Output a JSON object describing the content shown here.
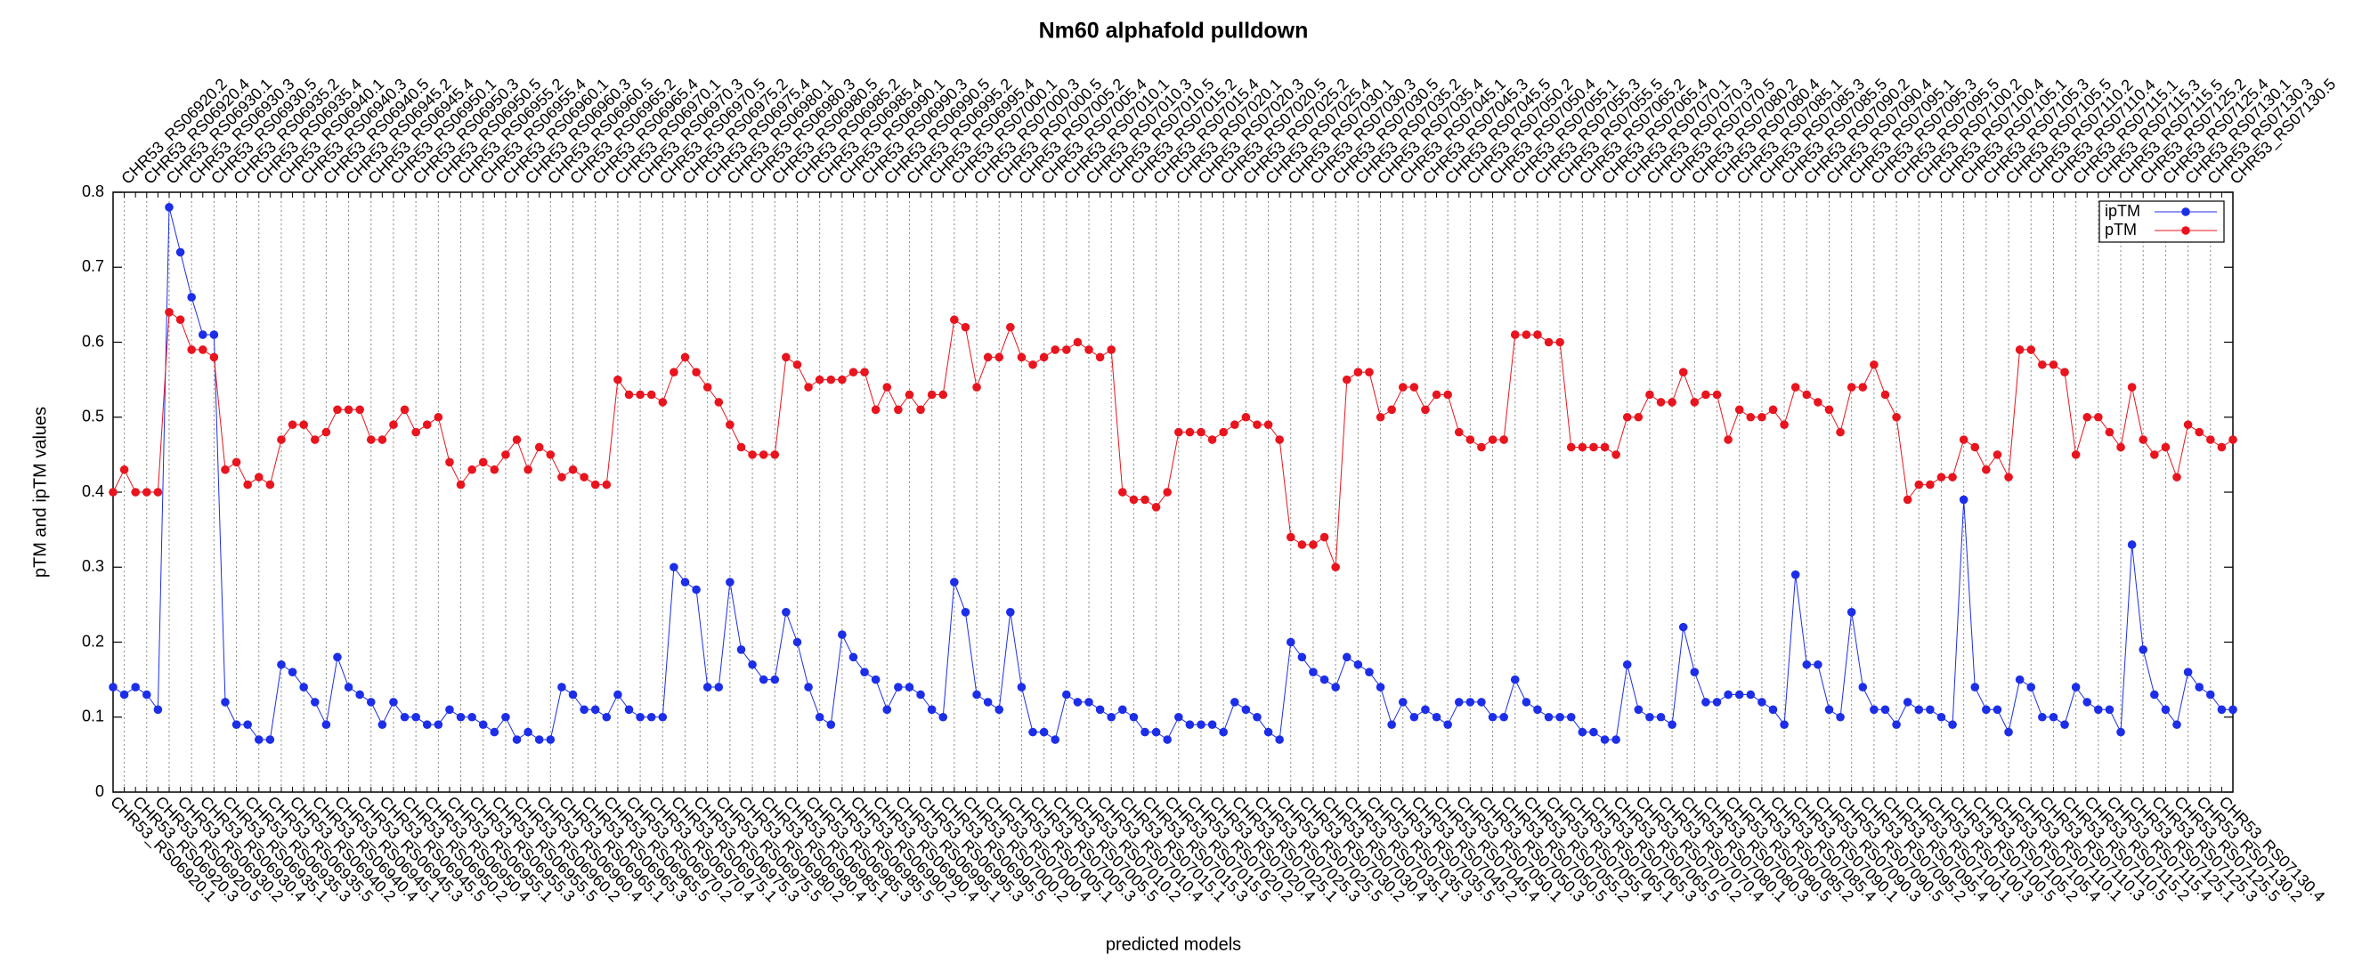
{
  "chart_data": {
    "type": "line",
    "title": "Nm60 alphafold pulldown",
    "xlabel": "predicted models",
    "ylabel": "pTM and ipTM values",
    "ylim": [
      0,
      0.8
    ],
    "yticks": [
      0,
      0.1,
      0.2,
      0.3,
      0.4,
      0.5,
      0.6,
      0.7,
      0.8
    ],
    "xgrid": true,
    "legend": "upper right",
    "categories": [
      "CHR53_RS06920.1",
      "CHR53_RS06920.2",
      "CHR53_RS06920.3",
      "CHR53_RS06920.4",
      "CHR53_RS06920.5",
      "CHR53_RS06930.1",
      "CHR53_RS06930.2",
      "CHR53_RS06930.3",
      "CHR53_RS06930.4",
      "CHR53_RS06930.5",
      "CHR53_RS06935.1",
      "CHR53_RS06935.2",
      "CHR53_RS06935.3",
      "CHR53_RS06935.4",
      "CHR53_RS06935.5",
      "CHR53_RS06940.1",
      "CHR53_RS06940.2",
      "CHR53_RS06940.3",
      "CHR53_RS06940.4",
      "CHR53_RS06940.5",
      "CHR53_RS06945.1",
      "CHR53_RS06945.2",
      "CHR53_RS06945.3",
      "CHR53_RS06945.4",
      "CHR53_RS06945.5",
      "CHR53_RS06950.1",
      "CHR53_RS06950.2",
      "CHR53_RS06950.3",
      "CHR53_RS06950.4",
      "CHR53_RS06950.5",
      "CHR53_RS06955.1",
      "CHR53_RS06955.2",
      "CHR53_RS06955.3",
      "CHR53_RS06955.4",
      "CHR53_RS06955.5",
      "CHR53_RS06960.1",
      "CHR53_RS06960.2",
      "CHR53_RS06960.3",
      "CHR53_RS06960.4",
      "CHR53_RS06960.5",
      "CHR53_RS06965.1",
      "CHR53_RS06965.2",
      "CHR53_RS06965.3",
      "CHR53_RS06965.4",
      "CHR53_RS06965.5",
      "CHR53_RS06970.1",
      "CHR53_RS06970.2",
      "CHR53_RS06970.3",
      "CHR53_RS06970.4",
      "CHR53_RS06970.5",
      "CHR53_RS06975.1",
      "CHR53_RS06975.2",
      "CHR53_RS06975.3",
      "CHR53_RS06975.4",
      "CHR53_RS06975.5",
      "CHR53_RS06980.1",
      "CHR53_RS06980.2",
      "CHR53_RS06980.3",
      "CHR53_RS06980.4",
      "CHR53_RS06980.5",
      "CHR53_RS06985.1",
      "CHR53_RS06985.2",
      "CHR53_RS06985.3",
      "CHR53_RS06985.4",
      "CHR53_RS06985.5",
      "CHR53_RS06990.1",
      "CHR53_RS06990.2",
      "CHR53_RS06990.3",
      "CHR53_RS06990.4",
      "CHR53_RS06990.5",
      "CHR53_RS06995.1",
      "CHR53_RS06995.2",
      "CHR53_RS06995.3",
      "CHR53_RS06995.4",
      "CHR53_RS06995.5",
      "CHR53_RS07000.1",
      "CHR53_RS07000.2",
      "CHR53_RS07000.3",
      "CHR53_RS07000.4",
      "CHR53_RS07000.5",
      "CHR53_RS07005.1",
      "CHR53_RS07005.2",
      "CHR53_RS07005.3",
      "CHR53_RS07005.4",
      "CHR53_RS07005.5",
      "CHR53_RS07010.1",
      "CHR53_RS07010.2",
      "CHR53_RS07010.3",
      "CHR53_RS07010.4",
      "CHR53_RS07010.5",
      "CHR53_RS07015.1",
      "CHR53_RS07015.2",
      "CHR53_RS07015.3",
      "CHR53_RS07015.4",
      "CHR53_RS07015.5",
      "CHR53_RS07020.1",
      "CHR53_RS07020.2",
      "CHR53_RS07020.3",
      "CHR53_RS07020.4",
      "CHR53_RS07020.5",
      "CHR53_RS07025.1",
      "CHR53_RS07025.2",
      "CHR53_RS07025.3",
      "CHR53_RS07025.4",
      "CHR53_RS07025.5",
      "CHR53_RS07030.1",
      "CHR53_RS07030.2",
      "CHR53_RS07030.3",
      "CHR53_RS07030.4",
      "CHR53_RS07030.5",
      "CHR53_RS07035.1",
      "CHR53_RS07035.2",
      "CHR53_RS07035.3",
      "CHR53_RS07035.4",
      "CHR53_RS07035.5",
      "CHR53_RS07045.1",
      "CHR53_RS07045.2",
      "CHR53_RS07045.3",
      "CHR53_RS07045.4",
      "CHR53_RS07045.5",
      "CHR53_RS07050.1",
      "CHR53_RS07050.2",
      "CHR53_RS07050.3",
      "CHR53_RS07050.4",
      "CHR53_RS07050.5",
      "CHR53_RS07055.1",
      "CHR53_RS07055.2",
      "CHR53_RS07055.3",
      "CHR53_RS07055.4",
      "CHR53_RS07055.5",
      "CHR53_RS07065.1",
      "CHR53_RS07065.2",
      "CHR53_RS07065.3",
      "CHR53_RS07065.4",
      "CHR53_RS07065.5",
      "CHR53_RS07070.1",
      "CHR53_RS07070.2",
      "CHR53_RS07070.3",
      "CHR53_RS07070.4",
      "CHR53_RS07070.5",
      "CHR53_RS07080.1",
      "CHR53_RS07080.2",
      "CHR53_RS07080.3",
      "CHR53_RS07080.4",
      "CHR53_RS07080.5",
      "CHR53_RS07085.1",
      "CHR53_RS07085.2",
      "CHR53_RS07085.3",
      "CHR53_RS07085.4",
      "CHR53_RS07085.5",
      "CHR53_RS07090.1",
      "CHR53_RS07090.2",
      "CHR53_RS07090.3",
      "CHR53_RS07090.4",
      "CHR53_RS07090.5",
      "CHR53_RS07095.1",
      "CHR53_RS07095.2",
      "CHR53_RS07095.3",
      "CHR53_RS07095.4",
      "CHR53_RS07095.5",
      "CHR53_RS07100.1",
      "CHR53_RS07100.2",
      "CHR53_RS07100.3",
      "CHR53_RS07100.4",
      "CHR53_RS07100.5",
      "CHR53_RS07105.1",
      "CHR53_RS07105.2",
      "CHR53_RS07105.3",
      "CHR53_RS07105.4",
      "CHR53_RS07105.5",
      "CHR53_RS07110.1",
      "CHR53_RS07110.2",
      "CHR53_RS07110.3",
      "CHR53_RS07110.4",
      "CHR53_RS07110.5",
      "CHR53_RS07115.1",
      "CHR53_RS07115.2",
      "CHR53_RS07115.3",
      "CHR53_RS07115.4",
      "CHR53_RS07115.5",
      "CHR53_RS07125.1",
      "CHR53_RS07125.2",
      "CHR53_RS07125.3",
      "CHR53_RS07125.4",
      "CHR53_RS07125.5",
      "CHR53_RS07130.1",
      "CHR53_RS07130.2",
      "CHR53_RS07130.3",
      "CHR53_RS07130.4",
      "CHR53_RS07130.5"
    ],
    "series": [
      {
        "name": "ipTM",
        "color": "#1c2ee8",
        "values": [
          0.14,
          0.13,
          0.14,
          0.13,
          0.11,
          0.78,
          0.72,
          0.66,
          0.61,
          0.61,
          0.12,
          0.09,
          0.09,
          0.07,
          0.07,
          0.17,
          0.16,
          0.14,
          0.12,
          0.09,
          0.18,
          0.14,
          0.13,
          0.12,
          0.09,
          0.12,
          0.1,
          0.1,
          0.09,
          0.09,
          0.11,
          0.1,
          0.1,
          0.09,
          0.08,
          0.1,
          0.07,
          0.08,
          0.07,
          0.07,
          0.14,
          0.13,
          0.11,
          0.11,
          0.1,
          0.13,
          0.11,
          0.1,
          0.1,
          0.1,
          0.3,
          0.28,
          0.27,
          0.14,
          0.14,
          0.28,
          0.19,
          0.17,
          0.15,
          0.15,
          0.24,
          0.2,
          0.14,
          0.1,
          0.09,
          0.21,
          0.18,
          0.16,
          0.15,
          0.11,
          0.14,
          0.14,
          0.13,
          0.11,
          0.1,
          0.28,
          0.24,
          0.13,
          0.12,
          0.11,
          0.24,
          0.14,
          0.08,
          0.08,
          0.07,
          0.13,
          0.12,
          0.12,
          0.11,
          0.1,
          0.11,
          0.1,
          0.08,
          0.08,
          0.07,
          0.1,
          0.09,
          0.09,
          0.09,
          0.08,
          0.12,
          0.11,
          0.1,
          0.08,
          0.07,
          0.2,
          0.18,
          0.16,
          0.15,
          0.14,
          0.18,
          0.17,
          0.16,
          0.14,
          0.09,
          0.12,
          0.1,
          0.11,
          0.1,
          0.09,
          0.12,
          0.12,
          0.12,
          0.1,
          0.1,
          0.15,
          0.12,
          0.11,
          0.1,
          0.1,
          0.1,
          0.08,
          0.08,
          0.07,
          0.07,
          0.17,
          0.11,
          0.1,
          0.1,
          0.09,
          0.22,
          0.16,
          0.12,
          0.12,
          0.13,
          0.13,
          0.13,
          0.12,
          0.11,
          0.09,
          0.29,
          0.17,
          0.17,
          0.11,
          0.1,
          0.24,
          0.14,
          0.11,
          0.11,
          0.09,
          0.12,
          0.11,
          0.11,
          0.1,
          0.09,
          0.39,
          0.14,
          0.11,
          0.11,
          0.08,
          0.15,
          0.14,
          0.1,
          0.1,
          0.09,
          0.14,
          0.12,
          0.11,
          0.11,
          0.08,
          0.33,
          0.19,
          0.13,
          0.11,
          0.09,
          0.16,
          0.14,
          0.13,
          0.11,
          0.11
        ]
      },
      {
        "name": "pTM",
        "color": "#e8141e",
        "values": [
          0.4,
          0.43,
          0.4,
          0.4,
          0.4,
          0.64,
          0.63,
          0.59,
          0.59,
          0.58,
          0.43,
          0.44,
          0.41,
          0.42,
          0.41,
          0.47,
          0.49,
          0.49,
          0.47,
          0.48,
          0.51,
          0.51,
          0.51,
          0.47,
          0.47,
          0.49,
          0.51,
          0.48,
          0.49,
          0.5,
          0.44,
          0.41,
          0.43,
          0.44,
          0.43,
          0.45,
          0.47,
          0.43,
          0.46,
          0.45,
          0.42,
          0.43,
          0.42,
          0.41,
          0.41,
          0.55,
          0.53,
          0.53,
          0.53,
          0.52,
          0.56,
          0.58,
          0.56,
          0.54,
          0.52,
          0.49,
          0.46,
          0.45,
          0.45,
          0.45,
          0.58,
          0.57,
          0.54,
          0.55,
          0.55,
          0.55,
          0.56,
          0.56,
          0.51,
          0.54,
          0.51,
          0.53,
          0.51,
          0.53,
          0.53,
          0.63,
          0.62,
          0.54,
          0.58,
          0.58,
          0.62,
          0.58,
          0.57,
          0.58,
          0.59,
          0.59,
          0.6,
          0.59,
          0.58,
          0.59,
          0.4,
          0.39,
          0.39,
          0.38,
          0.4,
          0.48,
          0.48,
          0.48,
          0.47,
          0.48,
          0.49,
          0.5,
          0.49,
          0.49,
          0.47,
          0.34,
          0.33,
          0.33,
          0.34,
          0.3,
          0.55,
          0.56,
          0.56,
          0.5,
          0.51,
          0.54,
          0.54,
          0.51,
          0.53,
          0.53,
          0.48,
          0.47,
          0.46,
          0.47,
          0.47,
          0.61,
          0.61,
          0.61,
          0.6,
          0.6,
          0.46,
          0.46,
          0.46,
          0.46,
          0.45,
          0.5,
          0.5,
          0.53,
          0.52,
          0.52,
          0.56,
          0.52,
          0.53,
          0.53,
          0.47,
          0.51,
          0.5,
          0.5,
          0.51,
          0.49,
          0.54,
          0.53,
          0.52,
          0.51,
          0.48,
          0.54,
          0.54,
          0.57,
          0.53,
          0.5,
          0.39,
          0.41,
          0.41,
          0.42,
          0.42,
          0.47,
          0.46,
          0.43,
          0.45,
          0.42,
          0.59,
          0.59,
          0.57,
          0.57,
          0.56,
          0.45,
          0.5,
          0.5,
          0.48,
          0.46,
          0.54,
          0.47,
          0.45,
          0.46,
          0.42,
          0.49,
          0.48,
          0.47,
          0.46,
          0.47
        ]
      }
    ]
  }
}
